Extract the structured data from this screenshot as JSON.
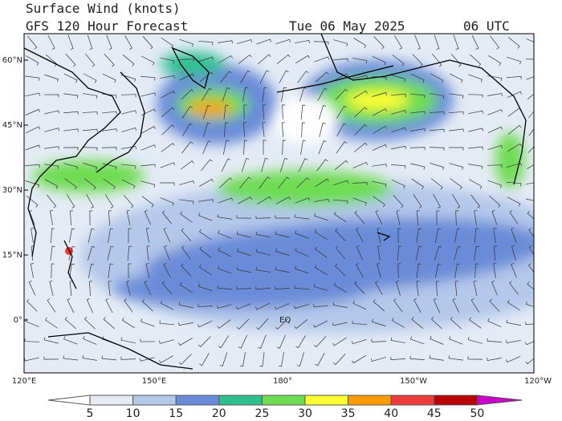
{
  "header": {
    "title": "Surface Wind (knots)",
    "subtitle": "GFS 120 Hour Forecast",
    "date": "Tue 06 May 2025",
    "time": "06 UTC"
  },
  "map": {
    "lat_labels": [
      "60°N",
      "45°N",
      "30°N",
      "15°N",
      "0°"
    ],
    "lon_labels": [
      "120°E",
      "150°E",
      "180°",
      "150°W",
      "120°W"
    ],
    "equator_label": "EQ"
  },
  "colorbar": {
    "ticks": [
      "5",
      "10",
      "15",
      "20",
      "25",
      "30",
      "35",
      "40",
      "45",
      "50"
    ],
    "colors": [
      "#ffffff",
      "#e4ebf5",
      "#b4c8ea",
      "#6a8cd8",
      "#2fbf8f",
      "#6edc52",
      "#ffff33",
      "#ff9a00",
      "#ee3a3a",
      "#b80000",
      "#cc00cc"
    ]
  }
}
